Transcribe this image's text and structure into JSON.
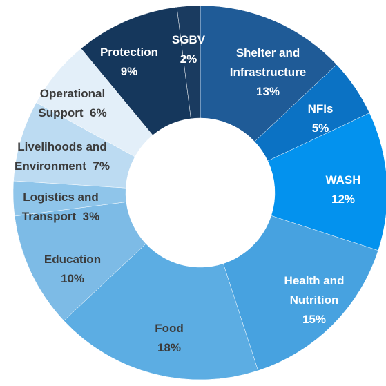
{
  "chart_data": {
    "type": "donut",
    "categories": [
      "Shelter and Infrastructure",
      "NFIs",
      "WASH",
      "Health and Nutrition",
      "Food",
      "Education",
      "Logistics and Transport",
      "Livelihoods and Environment",
      "Operational Support",
      "Protection",
      "SGBV"
    ],
    "values": [
      13,
      5,
      12,
      15,
      18,
      10,
      3,
      7,
      6,
      9,
      2
    ],
    "value_labels": [
      "13%",
      "5%",
      "12%",
      "15%",
      "18%",
      "10%",
      "3%",
      "7%",
      "6%",
      "9%",
      "2%"
    ],
    "colors": [
      "#1f5b97",
      "#0b72c4",
      "#0392ee",
      "#47a2e0",
      "#5cade3",
      "#7dbbe6",
      "#8fc5ea",
      "#bcdbf2",
      "#e3eff9",
      "#15375c",
      "#1a3b60"
    ]
  }
}
